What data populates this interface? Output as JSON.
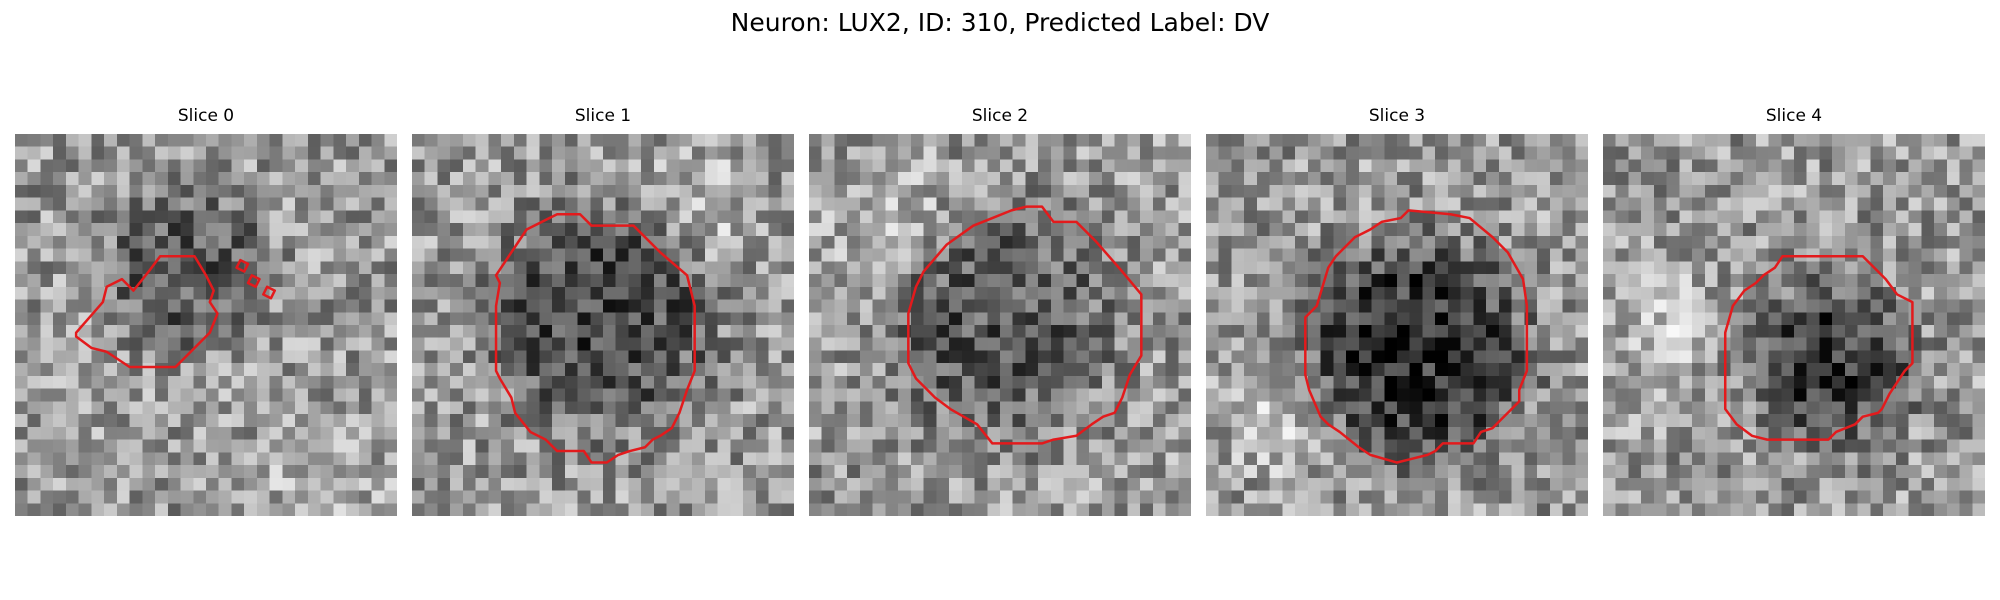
{
  "figure": {
    "title": "Neuron: LUX2, ID: 310, Predicted Label: DV",
    "contour_color": "#e31a1c"
  },
  "panels": [
    {
      "title": "Slice 0",
      "seed": 11,
      "dark_center": [
        0.45,
        0.35
      ],
      "dark_radius": 0.22,
      "dark_strength": 0.25,
      "bright_blob": [
        0.8,
        0.9
      ],
      "contours": [
        [
          [
            0.16,
            0.52
          ],
          [
            0.23,
            0.44
          ],
          [
            0.24,
            0.4
          ],
          [
            0.28,
            0.38
          ],
          [
            0.31,
            0.41
          ],
          [
            0.35,
            0.36
          ],
          [
            0.38,
            0.32
          ],
          [
            0.47,
            0.32
          ],
          [
            0.5,
            0.37
          ],
          [
            0.52,
            0.41
          ],
          [
            0.51,
            0.44
          ],
          [
            0.53,
            0.47
          ],
          [
            0.51,
            0.52
          ],
          [
            0.46,
            0.57
          ],
          [
            0.42,
            0.61
          ],
          [
            0.3,
            0.61
          ],
          [
            0.27,
            0.59
          ],
          [
            0.24,
            0.57
          ],
          [
            0.2,
            0.56
          ],
          [
            0.16,
            0.53
          ]
        ],
        [
          [
            0.59,
            0.33
          ],
          [
            0.61,
            0.34
          ],
          [
            0.6,
            0.36
          ],
          [
            0.58,
            0.35
          ]
        ],
        [
          [
            0.62,
            0.37
          ],
          [
            0.64,
            0.38
          ],
          [
            0.63,
            0.4
          ],
          [
            0.61,
            0.39
          ]
        ],
        [
          [
            0.66,
            0.4
          ],
          [
            0.68,
            0.41
          ],
          [
            0.67,
            0.43
          ],
          [
            0.65,
            0.42
          ]
        ]
      ]
    },
    {
      "title": "Slice 1",
      "seed": 23,
      "dark_center": [
        0.5,
        0.48
      ],
      "dark_radius": 0.3,
      "dark_strength": 0.32,
      "bright_blob": [
        0.75,
        0.2
      ],
      "contours": [
        [
          [
            0.22,
            0.37
          ],
          [
            0.3,
            0.25
          ],
          [
            0.36,
            0.22
          ],
          [
            0.38,
            0.21
          ],
          [
            0.44,
            0.21
          ],
          [
            0.47,
            0.24
          ],
          [
            0.58,
            0.24
          ],
          [
            0.65,
            0.31
          ],
          [
            0.72,
            0.37
          ],
          [
            0.74,
            0.45
          ],
          [
            0.74,
            0.62
          ],
          [
            0.72,
            0.67
          ],
          [
            0.7,
            0.73
          ],
          [
            0.68,
            0.77
          ],
          [
            0.65,
            0.79
          ],
          [
            0.63,
            0.8
          ],
          [
            0.61,
            0.82
          ],
          [
            0.57,
            0.83
          ],
          [
            0.54,
            0.84
          ],
          [
            0.51,
            0.86
          ],
          [
            0.47,
            0.86
          ],
          [
            0.45,
            0.83
          ],
          [
            0.38,
            0.83
          ],
          [
            0.35,
            0.8
          ],
          [
            0.31,
            0.78
          ],
          [
            0.27,
            0.73
          ],
          [
            0.26,
            0.69
          ],
          [
            0.23,
            0.64
          ],
          [
            0.22,
            0.62
          ],
          [
            0.22,
            0.45
          ],
          [
            0.23,
            0.39
          ]
        ]
      ]
    },
    {
      "title": "Slice 2",
      "seed": 37,
      "dark_center": [
        0.5,
        0.5
      ],
      "dark_radius": 0.3,
      "dark_strength": 0.26,
      "bright_blob": [
        0.2,
        0.2
      ],
      "contours": [
        [
          [
            0.3,
            0.36
          ],
          [
            0.36,
            0.29
          ],
          [
            0.43,
            0.24
          ],
          [
            0.48,
            0.22
          ],
          [
            0.53,
            0.2
          ],
          [
            0.57,
            0.19
          ],
          [
            0.61,
            0.19
          ],
          [
            0.64,
            0.23
          ],
          [
            0.7,
            0.23
          ],
          [
            0.75,
            0.28
          ],
          [
            0.82,
            0.36
          ],
          [
            0.87,
            0.42
          ],
          [
            0.87,
            0.58
          ],
          [
            0.84,
            0.63
          ],
          [
            0.82,
            0.69
          ],
          [
            0.8,
            0.73
          ],
          [
            0.77,
            0.74
          ],
          [
            0.74,
            0.76
          ],
          [
            0.7,
            0.79
          ],
          [
            0.64,
            0.8
          ],
          [
            0.61,
            0.81
          ],
          [
            0.48,
            0.81
          ],
          [
            0.44,
            0.76
          ],
          [
            0.37,
            0.72
          ],
          [
            0.33,
            0.69
          ],
          [
            0.28,
            0.64
          ],
          [
            0.26,
            0.6
          ],
          [
            0.26,
            0.47
          ],
          [
            0.28,
            0.4
          ]
        ]
      ]
    },
    {
      "title": "Slice 3",
      "seed": 53,
      "dark_center": [
        0.55,
        0.57
      ],
      "dark_radius": 0.3,
      "dark_strength": 0.42,
      "bright_blob": [
        0.2,
        0.75
      ],
      "contours": [
        [
          [
            0.29,
            0.45
          ],
          [
            0.32,
            0.35
          ],
          [
            0.34,
            0.32
          ],
          [
            0.37,
            0.29
          ],
          [
            0.39,
            0.27
          ],
          [
            0.41,
            0.26
          ],
          [
            0.43,
            0.25
          ],
          [
            0.46,
            0.23
          ],
          [
            0.51,
            0.22
          ],
          [
            0.53,
            0.2
          ],
          [
            0.64,
            0.21
          ],
          [
            0.69,
            0.22
          ],
          [
            0.75,
            0.27
          ],
          [
            0.79,
            0.31
          ],
          [
            0.83,
            0.38
          ],
          [
            0.84,
            0.45
          ],
          [
            0.84,
            0.62
          ],
          [
            0.82,
            0.67
          ],
          [
            0.82,
            0.7
          ],
          [
            0.79,
            0.73
          ],
          [
            0.75,
            0.77
          ],
          [
            0.72,
            0.78
          ],
          [
            0.7,
            0.81
          ],
          [
            0.62,
            0.81
          ],
          [
            0.6,
            0.83
          ],
          [
            0.58,
            0.84
          ],
          [
            0.54,
            0.85
          ],
          [
            0.5,
            0.86
          ],
          [
            0.43,
            0.84
          ],
          [
            0.4,
            0.82
          ],
          [
            0.35,
            0.78
          ],
          [
            0.32,
            0.76
          ],
          [
            0.3,
            0.74
          ],
          [
            0.27,
            0.67
          ],
          [
            0.26,
            0.63
          ],
          [
            0.26,
            0.48
          ]
        ]
      ]
    },
    {
      "title": "Slice 4",
      "seed": 71,
      "dark_center": [
        0.6,
        0.6
      ],
      "dark_radius": 0.22,
      "dark_strength": 0.38,
      "bright_blob": [
        0.15,
        0.5
      ],
      "contours": [
        [
          [
            0.32,
            0.52
          ],
          [
            0.34,
            0.45
          ],
          [
            0.37,
            0.41
          ],
          [
            0.4,
            0.39
          ],
          [
            0.42,
            0.37
          ],
          [
            0.45,
            0.35
          ],
          [
            0.47,
            0.32
          ],
          [
            0.68,
            0.32
          ],
          [
            0.74,
            0.38
          ],
          [
            0.77,
            0.42
          ],
          [
            0.81,
            0.44
          ],
          [
            0.81,
            0.6
          ],
          [
            0.79,
            0.62
          ],
          [
            0.77,
            0.65
          ],
          [
            0.75,
            0.68
          ],
          [
            0.73,
            0.72
          ],
          [
            0.72,
            0.73
          ],
          [
            0.68,
            0.74
          ],
          [
            0.66,
            0.76
          ],
          [
            0.61,
            0.78
          ],
          [
            0.59,
            0.8
          ],
          [
            0.43,
            0.8
          ],
          [
            0.39,
            0.79
          ],
          [
            0.35,
            0.76
          ],
          [
            0.32,
            0.72
          ],
          [
            0.32,
            0.55
          ]
        ]
      ]
    }
  ]
}
